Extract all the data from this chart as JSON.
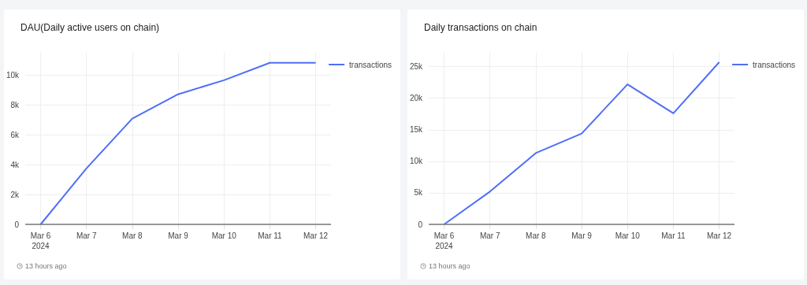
{
  "chart_data": [
    {
      "type": "line",
      "title": "DAU(Daily active users on chain)",
      "x": [
        "2024-03-06",
        "2024-03-07",
        "2024-03-08",
        "2024-03-09",
        "2024-03-10",
        "2024-03-11",
        "2024-03-12"
      ],
      "series": [
        {
          "name": "transactions",
          "color": "#4f6ef7",
          "values": [
            0,
            3750,
            7090,
            8720,
            9660,
            10830,
            10830
          ]
        }
      ],
      "xlim": [
        "2024-03-05T16:00",
        "2024-03-12T08:00"
      ],
      "xticks": [
        {
          "value": "2024-03-06",
          "label": "Mar 6\n2024"
        },
        {
          "value": "2024-03-07",
          "label": "Mar 7"
        },
        {
          "value": "2024-03-08",
          "label": "Mar 8"
        },
        {
          "value": "2024-03-09",
          "label": "Mar 9"
        },
        {
          "value": "2024-03-10",
          "label": "Mar 10"
        },
        {
          "value": "2024-03-11",
          "label": "Mar 11"
        },
        {
          "value": "2024-03-12",
          "label": "Mar 12"
        }
      ],
      "ylim": [
        0,
        11500
      ],
      "yticks": [
        {
          "value": 0,
          "label": "0"
        },
        {
          "value": 2000,
          "label": "2k"
        },
        {
          "value": 4000,
          "label": "4k"
        },
        {
          "value": 6000,
          "label": "6k"
        },
        {
          "value": 8000,
          "label": "8k"
        },
        {
          "value": 10000,
          "label": "10k"
        }
      ],
      "grid": true,
      "legend": "top right",
      "marker": "none",
      "annotations": [
        "13 hours ago"
      ]
    },
    {
      "type": "line",
      "title": "Daily transactions on chain",
      "x": [
        "2024-03-06",
        "2024-03-07",
        "2024-03-08",
        "2024-03-09",
        "2024-03-10",
        "2024-03-11",
        "2024-03-12"
      ],
      "series": [
        {
          "name": "transactions",
          "color": "#4f6ef7",
          "values": [
            0,
            5200,
            11300,
            14400,
            22200,
            17600,
            25700
          ]
        }
      ],
      "xlim": [
        "2024-03-05T16:00",
        "2024-03-12T08:00"
      ],
      "xticks": [
        {
          "value": "2024-03-06",
          "label": "Mar 6\n2024"
        },
        {
          "value": "2024-03-07",
          "label": "Mar 7"
        },
        {
          "value": "2024-03-08",
          "label": "Mar 8"
        },
        {
          "value": "2024-03-09",
          "label": "Mar 9"
        },
        {
          "value": "2024-03-10",
          "label": "Mar 10"
        },
        {
          "value": "2024-03-11",
          "label": "Mar 11"
        },
        {
          "value": "2024-03-12",
          "label": "Mar 12"
        }
      ],
      "ylim": [
        0,
        27200
      ],
      "yticks": [
        {
          "value": 0,
          "label": "0"
        },
        {
          "value": 5000,
          "label": "5k"
        },
        {
          "value": 10000,
          "label": "10k"
        },
        {
          "value": 15000,
          "label": "15k"
        },
        {
          "value": 20000,
          "label": "20k"
        },
        {
          "value": 25000,
          "label": "25k"
        }
      ],
      "grid": true,
      "legend": "top right",
      "marker": "none",
      "annotations": [
        "13 hours ago"
      ]
    }
  ]
}
